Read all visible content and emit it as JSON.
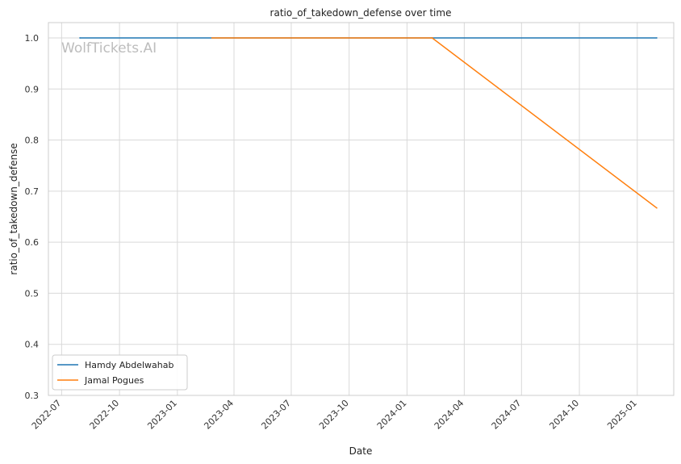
{
  "watermark": "WolfTickets.AI",
  "chart_data": {
    "type": "line",
    "title": "ratio_of_takedown_defense over time",
    "xlabel": "Date",
    "ylabel": "ratio_of_takedown_defense",
    "x_ticks": [
      "2022-07",
      "2022-10",
      "2023-01",
      "2023-04",
      "2023-07",
      "2023-10",
      "2024-01",
      "2024-04",
      "2024-07",
      "2024-10",
      "2025-01"
    ],
    "y_ticks": [
      "0.3",
      "0.4",
      "0.5",
      "0.6",
      "0.7",
      "0.8",
      "0.9",
      "1.0"
    ],
    "ylim": [
      0.3,
      1.03
    ],
    "xlim": [
      "2022-06-10",
      "2025-02-28"
    ],
    "grid": true,
    "legend_position": "lower-left",
    "series": [
      {
        "name": "Hamdy Abdelwahab",
        "color": "#1f77b4",
        "points": [
          {
            "x": "2022-07-30",
            "y": 1.0
          },
          {
            "x": "2025-02-01",
            "y": 1.0
          }
        ]
      },
      {
        "name": "Jamal Pogues",
        "color": "#ff7f0e",
        "points": [
          {
            "x": "2023-02-25",
            "y": 1.0
          },
          {
            "x": "2024-02-10",
            "y": 1.0
          },
          {
            "x": "2025-02-01",
            "y": 0.667
          }
        ]
      }
    ]
  }
}
